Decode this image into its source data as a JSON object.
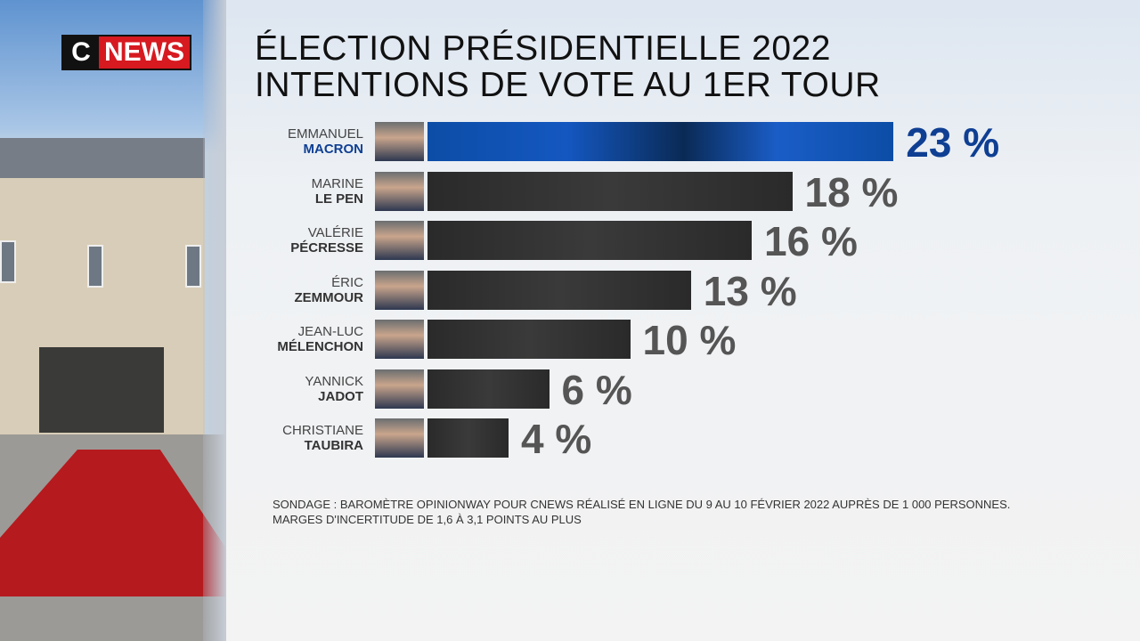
{
  "logo": {
    "c": "C",
    "news": "NEWS"
  },
  "title": {
    "line1": "ÉLECTION PRÉSIDENTIELLE 2022",
    "line2": "INTENTIONS DE VOTE AU 1ER TOUR"
  },
  "chart_data": {
    "type": "bar",
    "orientation": "horizontal",
    "title": "ÉLECTION PRÉSIDENTIELLE 2022 INTENTIONS DE VOTE AU 1ER TOUR",
    "categories": [
      {
        "first": "EMMANUEL",
        "last": "MACRON"
      },
      {
        "first": "MARINE",
        "last": "LE PEN"
      },
      {
        "first": "VALÉRIE",
        "last": "PÉCRESSE"
      },
      {
        "first": "ÉRIC",
        "last": "ZEMMOUR"
      },
      {
        "first": "JEAN-LUC",
        "last": "MÉLENCHON"
      },
      {
        "first": "YANNICK",
        "last": "JADOT"
      },
      {
        "first": "CHRISTIANE",
        "last": "TAUBIRA"
      }
    ],
    "values": [
      23,
      18,
      16,
      13,
      10,
      6,
      4
    ],
    "labels": [
      "23 %",
      "18 %",
      "16 %",
      "13 %",
      "10 %",
      "6 %",
      "4 %"
    ],
    "colors": {
      "leader": "#1457c0",
      "others": "#333333",
      "leader_label": "#0f3f93",
      "other_label": "#555555"
    }
  },
  "source": {
    "line1": "SONDAGE : BAROMÈTRE OPINIONWAY POUR CNEWS RÉALISÉ EN LIGNE DU 9 AU 10 FÉVRIER 2022 AUPRÈS DE 1 000 PERSONNES.",
    "line2": "MARGES D'INCERTITUDE DE 1,6 À 3,1 POINTS AU PLUS"
  }
}
